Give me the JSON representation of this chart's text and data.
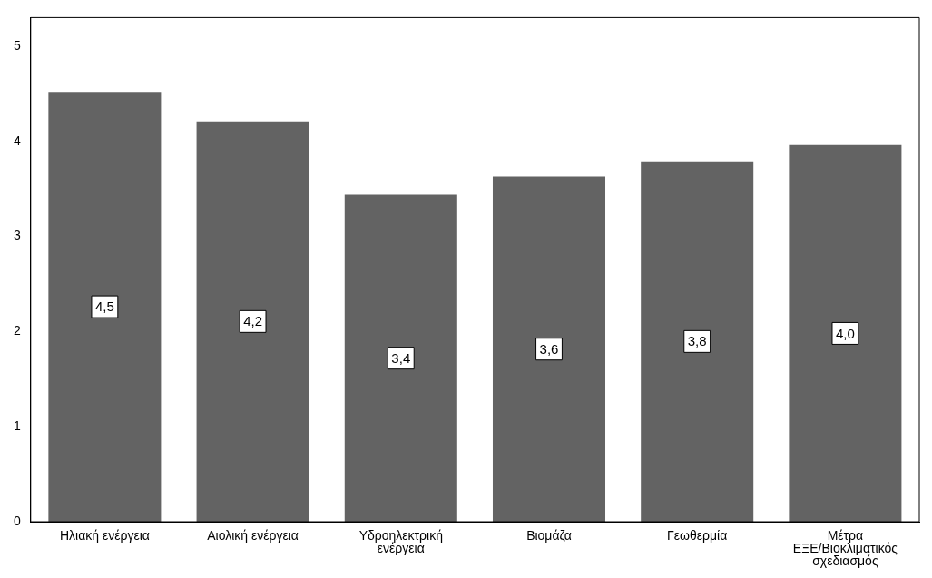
{
  "chart_data": {
    "type": "bar",
    "categories": [
      "Ηλιακή ενέργεια",
      "Αιολική ενέργεια",
      "Υδροηλεκτρική ενέργεια",
      "Βιομάζα",
      "Γεωθερμία",
      "Μέτρα ΕΞΕ/Βιοκλιματικός σχεδιασμός"
    ],
    "values": [
      4.52,
      4.21,
      3.44,
      3.63,
      3.79,
      3.96
    ],
    "value_labels": [
      "4,5",
      "4,2",
      "3,4",
      "3,6",
      "3,8",
      "4,0"
    ],
    "color": "#636363",
    "ylim": [
      0,
      5.3
    ],
    "yticks": [
      0,
      1,
      2,
      3,
      4,
      5
    ],
    "grid": false,
    "legend": false
  }
}
